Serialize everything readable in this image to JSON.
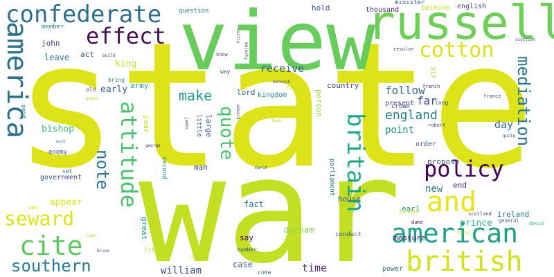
{
  "words": [
    {
      "text": "state",
      "color": "#dde318"
    },
    {
      "text": "war",
      "color": "#c2df23"
    },
    {
      "text": "view",
      "color": "#67cc5c"
    },
    {
      "text": "russell",
      "color": "#6ece58"
    },
    {
      "text": "america",
      "color": "#2c728e"
    },
    {
      "text": "confederate",
      "color": "#2e6f8e"
    },
    {
      "text": "effect",
      "color": "#450d54"
    },
    {
      "text": "cotton",
      "color": "#dae319"
    },
    {
      "text": "and",
      "color": "#e7e419"
    },
    {
      "text": "policy",
      "color": "#440154"
    },
    {
      "text": "mediation",
      "color": "#2a778e"
    },
    {
      "text": "american",
      "color": "#1fa187"
    },
    {
      "text": "british",
      "color": "#d2e21b"
    },
    {
      "text": "cite",
      "color": "#5ec962"
    },
    {
      "text": "southern",
      "color": "#287c8e"
    },
    {
      "text": "seward",
      "color": "#dde318"
    },
    {
      "text": "attitude",
      "color": "#4ac16d"
    },
    {
      "text": "note",
      "color": "#2a788e"
    },
    {
      "text": "quote",
      "color": "#4ac16d"
    },
    {
      "text": "britain",
      "color": "#22a785"
    },
    {
      "text": "england",
      "color": "#277f8e"
    },
    {
      "text": "make",
      "color": "#1f988b"
    },
    {
      "text": "receive",
      "color": "#34608d"
    },
    {
      "text": "follow",
      "color": "#31688e"
    },
    {
      "text": "bishop",
      "color": "#3dbc74"
    },
    {
      "text": "day",
      "color": "#31668e"
    },
    {
      "text": "time",
      "color": "#472d7b"
    },
    {
      "text": "william",
      "color": "#3b528b"
    },
    {
      "text": "appear",
      "color": "#e5e419"
    },
    {
      "text": "point",
      "color": "#20928c"
    },
    {
      "text": "far",
      "color": "#3e4989"
    },
    {
      "text": "early",
      "color": "#365c8d"
    },
    {
      "text": "lord",
      "color": "#33638d"
    },
    {
      "text": "king",
      "color": "#c0df25"
    },
    {
      "text": "fact",
      "color": "#2e6e8e"
    },
    {
      "text": "case",
      "color": "#375b8d"
    },
    {
      "text": "durham",
      "color": "#89d548"
    },
    {
      "text": "say",
      "color": "#440154"
    },
    {
      "text": "house",
      "color": "#3b518b"
    },
    {
      "text": "earl",
      "color": "#228b8d"
    },
    {
      "text": "new",
      "color": "#2c738e"
    },
    {
      "text": "end",
      "color": "#482173"
    },
    {
      "text": "propose",
      "color": "#3b518b"
    },
    {
      "text": "prince",
      "color": "#31b57b"
    },
    {
      "text": "ireland",
      "color": "#2c728e"
    },
    {
      "text": "measure",
      "color": "#46327e"
    },
    {
      "text": "parliament",
      "color": "#2c728e"
    },
    {
      "text": "person",
      "color": "#97d83f"
    },
    {
      "text": "country",
      "color": "#424086"
    },
    {
      "text": "kingdom",
      "color": "#25838e"
    },
    {
      "text": "man",
      "color": "#3f4788"
    },
    {
      "text": "large",
      "color": "#3e4c8a"
    },
    {
      "text": "little",
      "color": "#3a548c"
    },
    {
      "text": "year",
      "color": "#d0e11c"
    },
    {
      "text": "army",
      "color": "#1f9e89"
    },
    {
      "text": "act",
      "color": "#3b518b"
    },
    {
      "text": "leave",
      "color": "#2a778e"
    },
    {
      "text": "john",
      "color": "#433e85"
    },
    {
      "text": "member",
      "color": "#24868e"
    },
    {
      "text": "question",
      "color": "#2a788e"
    },
    {
      "text": "hold",
      "color": "#3b528b"
    },
    {
      "text": "thousand",
      "color": "#481f70"
    },
    {
      "text": "minister",
      "color": "#3a548c"
    },
    {
      "text": "opinion",
      "color": "#c8e020"
    },
    {
      "text": "english",
      "color": "#433e85"
    },
    {
      "text": "government",
      "color": "#3e4a89"
    },
    {
      "text": "enemy",
      "color": "#3e4a89"
    },
    {
      "text": "second",
      "color": "#21918c"
    },
    {
      "text": "great",
      "color": "#21918c"
    },
    {
      "text": "conduct",
      "color": "#3b528b"
    },
    {
      "text": "present",
      "color": "#433e85"
    },
    {
      "text": "crown",
      "color": "#414487"
    },
    {
      "text": "order",
      "color": "#3b528b"
    },
    {
      "text": "power",
      "color": "#2c728e"
    },
    {
      "text": "set",
      "color": "#2a788e"
    },
    {
      "text": "law",
      "color": "#dde318"
    },
    {
      "text": "bring",
      "color": "#2a788e"
    },
    {
      "text": "old",
      "color": "#414487"
    },
    {
      "text": "sir",
      "color": "#a2da37"
    },
    {
      "text": "long",
      "color": "#3b528b"
    },
    {
      "text": "london",
      "color": "#b5de2b"
    },
    {
      "text": "duke",
      "color": "#440154"
    },
    {
      "text": "good",
      "color": "#31688e"
    },
    {
      "text": "like",
      "color": "#b5de2b"
    },
    {
      "text": "number",
      "color": "#3b528b"
    },
    {
      "text": "come",
      "color": "#2c728e"
    },
    {
      "text": "common",
      "color": "#b5de2b"
    },
    {
      "text": "general",
      "color": "#3b528b"
    },
    {
      "text": "david",
      "color": "#31b57b"
    },
    {
      "text": "scotland",
      "color": "#433e85"
    },
    {
      "text": "harry",
      "color": "#b5de2b"
    },
    {
      "text": "resolve",
      "color": "#3b528b"
    },
    {
      "text": "france",
      "color": "#433e85"
    },
    {
      "text": "french",
      "color": "#433e85"
    },
    {
      "text": "robert",
      "color": "#433e85"
    },
    {
      "text": "city",
      "color": "#b5de2b"
    },
    {
      "text": "berwick",
      "color": "#433e85"
    },
    {
      "text": "edward",
      "color": "#433e85"
    },
    {
      "text": "march",
      "color": "#3b528b"
    },
    {
      "text": "know",
      "color": "#433e85"
    },
    {
      "text": "way",
      "color": "#3b528b"
    },
    {
      "text": "scottish",
      "color": "#433e85"
    },
    {
      "text": "castle",
      "color": "#433e85"
    },
    {
      "text": "majesty",
      "color": "#433e85"
    },
    {
      "text": "james",
      "color": "#433e85"
    },
    {
      "text": "george",
      "color": "#433e85"
    },
    {
      "text": "town",
      "color": "#b5de2b"
    },
    {
      "text": "scot",
      "color": "#2c728e"
    },
    {
      "text": "bruce",
      "color": "#433e85"
    },
    {
      "text": "lost",
      "color": "#b5de2b"
    },
    {
      "text": "queen",
      "color": "#b5de2b"
    },
    {
      "text": "build",
      "color": "#433e85"
    },
    {
      "text": "quite",
      "color": "#433e85"
    }
  ]
}
